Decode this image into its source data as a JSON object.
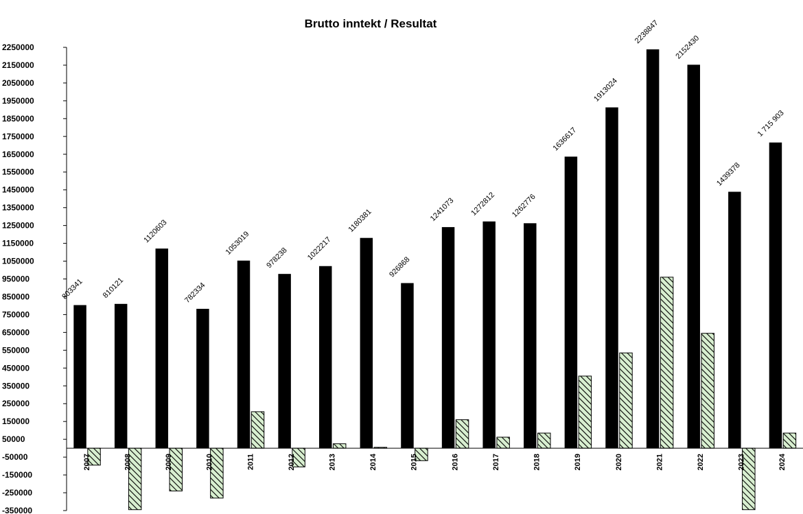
{
  "chart_data": {
    "type": "bar",
    "title": "Brutto inntekt / Resultat",
    "xlabel": "",
    "ylabel": "",
    "ylim": [
      -350000,
      2250000
    ],
    "yticks": [
      2250000,
      2150000,
      2050000,
      1950000,
      1850000,
      1750000,
      1650000,
      1550000,
      1450000,
      1350000,
      1250000,
      1150000,
      1050000,
      950000,
      850000,
      750000,
      650000,
      550000,
      450000,
      350000,
      250000,
      150000,
      50000,
      -50000,
      -150000,
      -250000,
      -350000
    ],
    "ytick_labels": [
      "2250000",
      "2150000",
      "2050000",
      "1950000",
      "1850000",
      "1750000",
      "1650000",
      "1550000",
      "1450000",
      "1350000",
      "1250000",
      "1150000",
      "1050000",
      "950000",
      "850000",
      "750000",
      "650000",
      "550000",
      "450000",
      "350000",
      "250000",
      "150000",
      "50000",
      "-50000",
      "-150000",
      "-250000",
      "-350000"
    ],
    "categories": [
      "2007",
      "2008",
      "2009",
      "2010",
      "2011",
      "2012",
      "2013",
      "2014",
      "2015",
      "2016",
      "2017",
      "2018",
      "2019",
      "2020",
      "2021",
      "2022",
      "2023",
      "2024"
    ],
    "series": [
      {
        "color": "#000000",
        "values": [
          803341,
          810121,
          1120603,
          782334,
          1053019,
          978238,
          1022217,
          1180381,
          926868,
          1241073,
          1272812,
          1262776,
          1636617,
          1913024,
          2238847,
          2152430,
          1439378,
          1715903
        ],
        "data_labels": [
          "803341",
          "810121",
          "1120603",
          "782334",
          "1053019",
          "978238",
          "1022217",
          "1180381",
          "926868",
          "1241073",
          "1272812",
          "1262776",
          "1636617",
          "1913024",
          "2238847",
          "2152430",
          "1439378",
          "1 715 903"
        ]
      },
      {
        "color": "#d8efd0",
        "pattern": "diagonal-hatch",
        "values": [
          -95000,
          -345000,
          -240000,
          -280000,
          205000,
          -105000,
          25000,
          5000,
          -70000,
          160000,
          62000,
          85000,
          405000,
          535000,
          960000,
          645000,
          -345000,
          85000
        ]
      }
    ],
    "grid": false,
    "legend": "none"
  }
}
